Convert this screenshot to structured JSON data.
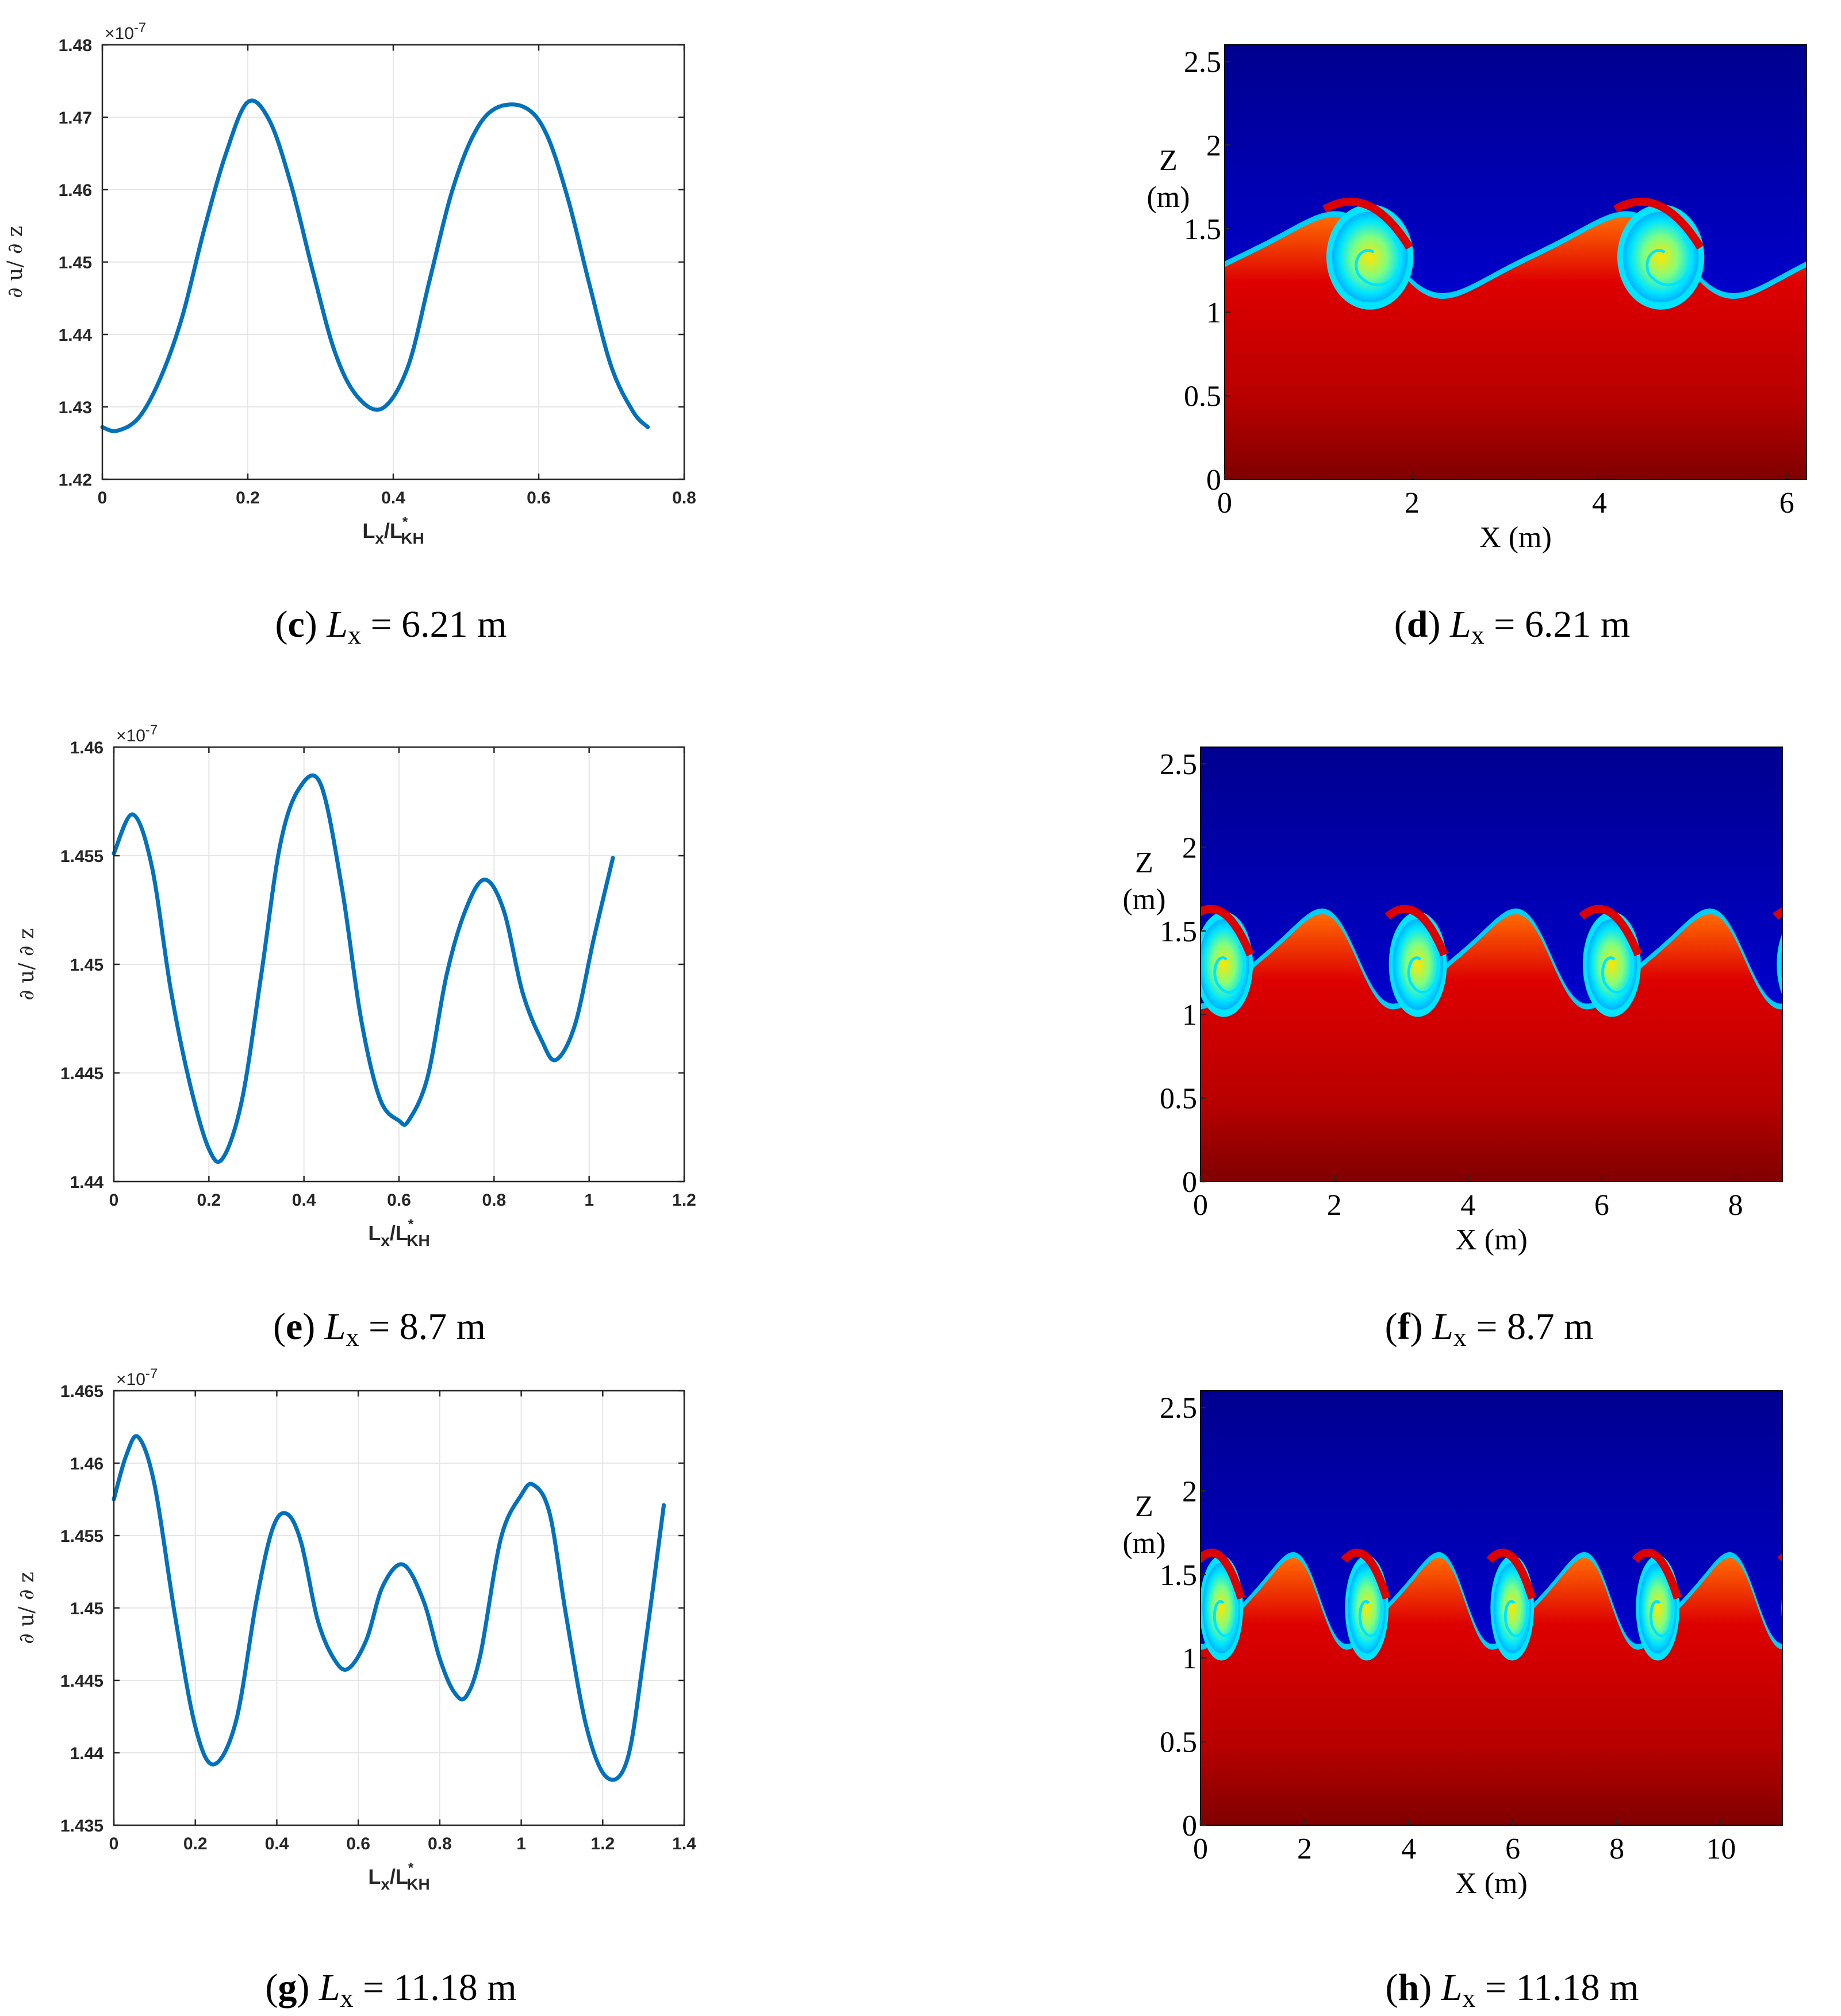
{
  "colors": {
    "line": "#0072BD",
    "dark_blue": "#00008F",
    "blue": "#0044FF",
    "cyan": "#00E5FF",
    "green": "#7FFF7F",
    "yellow": "#FFE500",
    "orange": "#FF6A00",
    "red": "#DD0000",
    "dark_red": "#800000"
  },
  "chart_data": [
    {
      "id": "c",
      "type": "line",
      "caption": {
        "letter": "c",
        "var": "L",
        "sub": "x",
        "eq": " = 6.21 m"
      },
      "xlabel": {
        "main": "L",
        "sub1": "x",
        "slash": "/L",
        "sup": "*",
        "sub2": "KH"
      },
      "ylabel": "∂ u/ ∂ z",
      "exponent": {
        "base": "×10",
        "power": "-7"
      },
      "xlim": [
        0,
        0.8
      ],
      "ylim": [
        1.42,
        1.48
      ],
      "xticks": [
        "0",
        "0.2",
        "0.4",
        "0.6",
        "0.8"
      ],
      "yticks": [
        "1.42",
        "1.43",
        "1.44",
        "1.45",
        "1.46",
        "1.47",
        "1.48"
      ],
      "grid": true,
      "series": [
        {
          "name": "du/dz",
          "x": [
            0,
            0.02,
            0.05,
            0.08,
            0.11,
            0.14,
            0.17,
            0.2,
            0.23,
            0.26,
            0.29,
            0.32,
            0.35,
            0.385,
            0.42,
            0.45,
            0.48,
            0.51,
            0.54,
            0.58,
            0.61,
            0.64,
            0.67,
            0.7,
            0.73,
            0.75
          ],
          "y": [
            1.4272,
            1.4267,
            1.4285,
            1.434,
            1.4425,
            1.4545,
            1.465,
            1.4721,
            1.4695,
            1.4605,
            1.4485,
            1.4375,
            1.4315,
            1.4298,
            1.4355,
            1.4475,
            1.4595,
            1.4675,
            1.4712,
            1.4714,
            1.4678,
            1.4588,
            1.4468,
            1.4355,
            1.4293,
            1.4272
          ]
        }
      ]
    },
    {
      "id": "d",
      "type": "heatmap",
      "caption": {
        "letter": "d",
        "var": "L",
        "sub": "x",
        "eq": " = 6.21 m"
      },
      "xlabel": "X (m)",
      "ylabel": [
        "Z",
        "(m)"
      ],
      "xlim": [
        0,
        6.21
      ],
      "ylim": [
        0,
        2.6
      ],
      "xticks": [
        "0",
        "2",
        "4",
        "6"
      ],
      "yticks": [
        "0",
        "0.5",
        "1",
        "1.5",
        "2",
        "2.5"
      ],
      "waves": 2,
      "shift": 0.2,
      "vortex_center": [
        1.55,
        1.33
      ],
      "crest_z": 1.57,
      "trough_z": 1.08
    },
    {
      "id": "e",
      "type": "line",
      "caption": {
        "letter": "e",
        "var": "L",
        "sub": "x",
        "eq": " = 8.7 m"
      },
      "xlabel": {
        "main": "L",
        "sub1": "x",
        "slash": "/L",
        "sup": "*",
        "sub2": "KH"
      },
      "ylabel": "∂ u/ ∂ z",
      "exponent": {
        "base": "×10",
        "power": "-7"
      },
      "xlim": [
        0,
        1.2
      ],
      "ylim": [
        1.44,
        1.46
      ],
      "xticks": [
        "0",
        "0.2",
        "0.4",
        "0.6",
        "0.8",
        "1",
        "1.2"
      ],
      "yticks": [
        "1.44",
        "1.445",
        "1.45",
        "1.455",
        "1.46"
      ],
      "grid": true,
      "series": [
        {
          "name": "du/dz",
          "x": [
            0,
            0.04,
            0.08,
            0.12,
            0.16,
            0.2,
            0.23,
            0.27,
            0.31,
            0.35,
            0.39,
            0.435,
            0.48,
            0.52,
            0.56,
            0.6,
            0.62,
            0.66,
            0.7,
            0.74,
            0.78,
            0.82,
            0.86,
            0.9,
            0.93,
            0.97,
            1.01,
            1.05
          ],
          "y": [
            1.4551,
            1.4569,
            1.4545,
            1.4488,
            1.4445,
            1.4415,
            1.4411,
            1.4438,
            1.4495,
            1.4555,
            1.4581,
            1.4583,
            1.4535,
            1.4475,
            1.4438,
            1.4428,
            1.4428,
            1.4448,
            1.4495,
            1.4525,
            1.4539,
            1.4525,
            1.4487,
            1.4465,
            1.4456,
            1.4472,
            1.4512,
            1.4549
          ]
        }
      ]
    },
    {
      "id": "f",
      "type": "heatmap",
      "caption": {
        "letter": "f",
        "var": "L",
        "sub": "x",
        "eq": " = 8.7 m"
      },
      "xlabel": "X (m)",
      "ylabel": [
        "Z",
        "(m)"
      ],
      "xlim": [
        0,
        8.7
      ],
      "ylim": [
        0,
        2.6
      ],
      "xticks": [
        "0",
        "2",
        "4",
        "6",
        "8"
      ],
      "yticks": [
        "0",
        "0.5",
        "1",
        "1.5",
        "2",
        "2.5"
      ],
      "waves": 3,
      "shift": 0.9,
      "vortex_center": [
        0.35,
        1.3
      ],
      "crest_z": 1.6,
      "trough_z": 1.03
    },
    {
      "id": "g",
      "type": "line",
      "caption": {
        "letter": "g",
        "var": "L",
        "sub": "x",
        "eq": " = 11.18 m"
      },
      "xlabel": {
        "main": "L",
        "sub1": "x",
        "slash": "/L",
        "sup": "*",
        "sub2": "KH"
      },
      "ylabel": "∂ u/ ∂ z",
      "exponent": {
        "base": "×10",
        "power": "-7"
      },
      "xlim": [
        0,
        1.4
      ],
      "ylim": [
        1.435,
        1.465
      ],
      "xticks": [
        "0",
        "0.2",
        "0.4",
        "0.6",
        "0.8",
        "1",
        "1.2",
        "1.4"
      ],
      "yticks": [
        "1.435",
        "1.44",
        "1.445",
        "1.45",
        "1.455",
        "1.46",
        "1.465"
      ],
      "grid": true,
      "series": [
        {
          "name": "du/dz",
          "x": [
            0,
            0.03,
            0.06,
            0.1,
            0.15,
            0.2,
            0.245,
            0.3,
            0.35,
            0.39,
            0.425,
            0.46,
            0.5,
            0.54,
            0.575,
            0.62,
            0.66,
            0.71,
            0.76,
            0.8,
            0.835,
            0.865,
            0.9,
            0.95,
            1.0,
            1.03,
            1.07,
            1.11,
            1.16,
            1.21,
            1.26,
            1.3,
            1.35
          ],
          "y": [
            1.4575,
            1.4605,
            1.4618,
            1.4585,
            1.4495,
            1.4418,
            1.4392,
            1.4422,
            1.4505,
            1.4555,
            1.4565,
            1.4545,
            1.4492,
            1.4465,
            1.4458,
            1.4478,
            1.4515,
            1.453,
            1.4505,
            1.4465,
            1.4442,
            1.4439,
            1.4468,
            1.4548,
            1.4578,
            1.4585,
            1.4565,
            1.4495,
            1.4418,
            1.4383,
            1.4395,
            1.4465,
            1.4571
          ]
        }
      ]
    },
    {
      "id": "h",
      "type": "heatmap",
      "caption": {
        "letter": "h",
        "var": "L",
        "sub": "x",
        "eq": " = 11.18 m"
      },
      "xlabel": "X (m)",
      "ylabel": [
        "Z",
        "(m)"
      ],
      "xlim": [
        0,
        11.18
      ],
      "ylim": [
        0,
        2.6
      ],
      "xticks": [
        "0",
        "2",
        "4",
        "6",
        "8",
        "10"
      ],
      "yticks": [
        "0",
        "0.5",
        "1",
        "1.5",
        "2",
        "2.5"
      ],
      "waves": 4,
      "shift": 0.9,
      "vortex_center": [
        0.4,
        1.3
      ],
      "crest_z": 1.6,
      "trough_z": 1.05
    }
  ]
}
